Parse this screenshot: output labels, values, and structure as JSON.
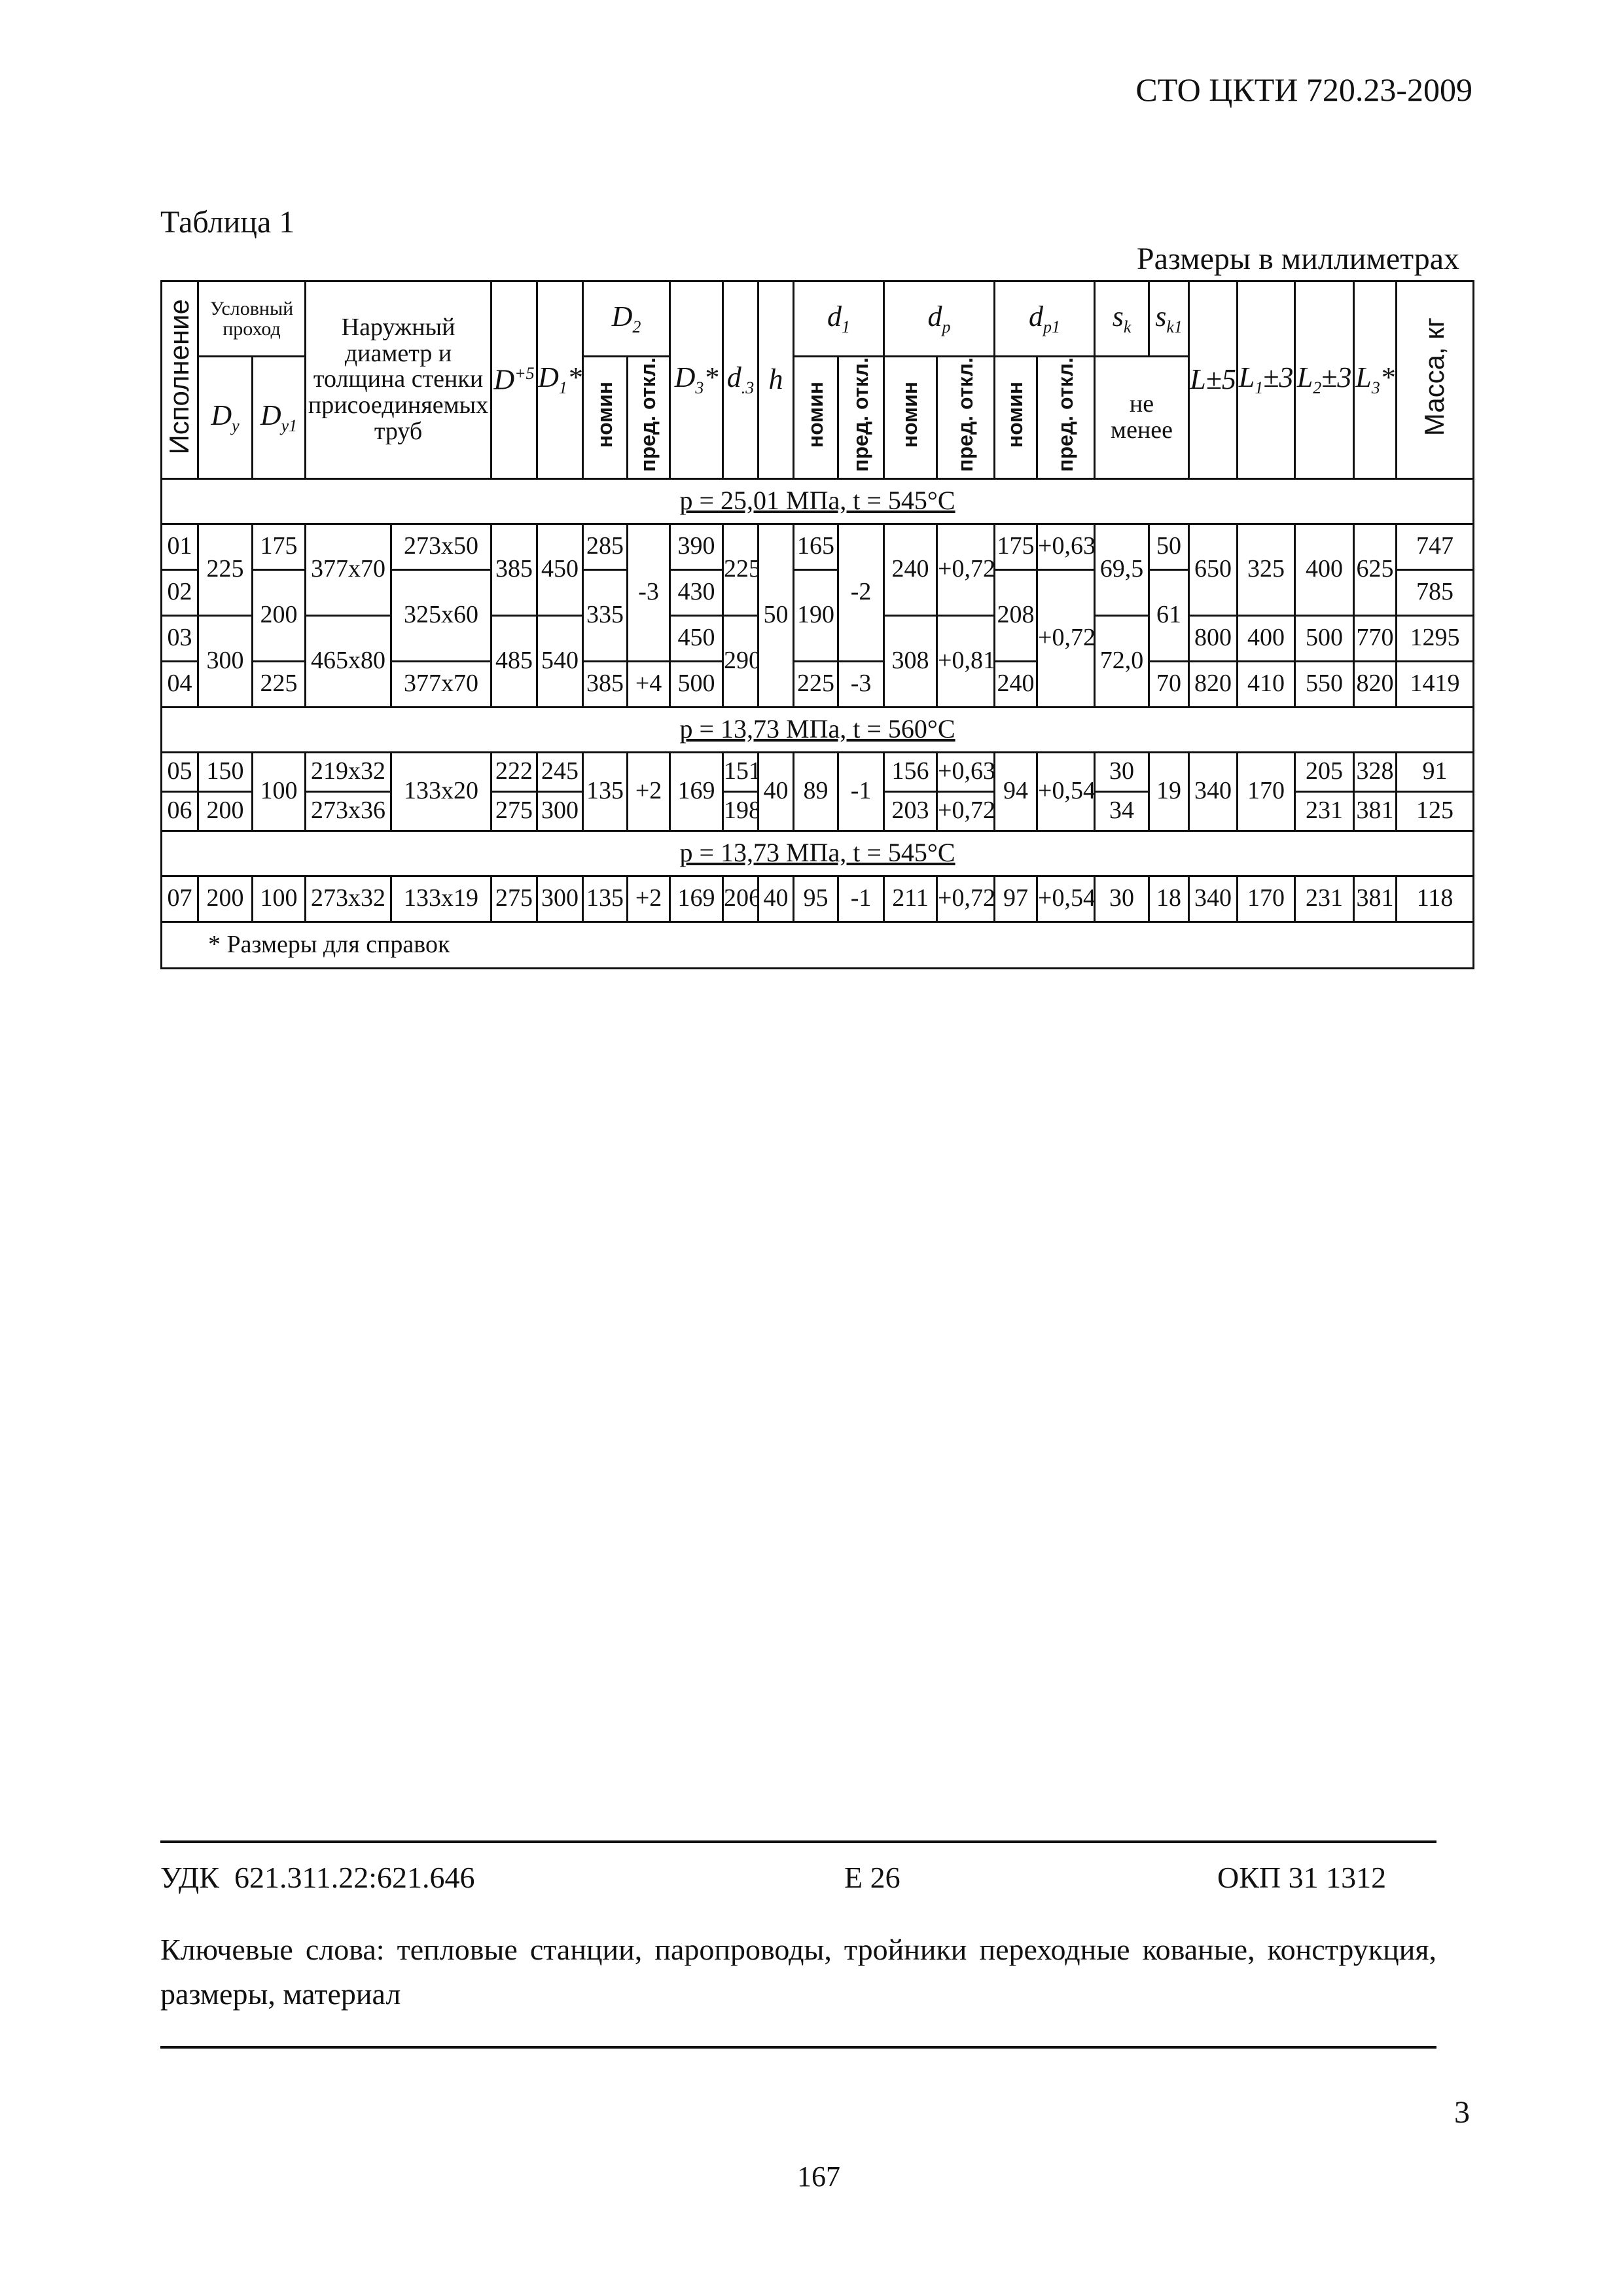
{
  "header": {
    "doc_code": "СТО ЦКТИ 720.23-2009",
    "table_title": "Таблица 1",
    "units": "Размеры в миллиметрах"
  },
  "table": {
    "columns": {
      "variant": "Исполнение",
      "nominal_bore": "Условный проход",
      "dy": {
        "main": "D",
        "sub": "у"
      },
      "dy1": {
        "main": "D",
        "sub": "у1"
      },
      "outer": "Наружный диаметр и толщина стенки присоединяемых труб",
      "d": {
        "main": "D",
        "sup": "+5"
      },
      "d1": {
        "main": "D",
        "sub": "1",
        "tail": "*"
      },
      "d2": {
        "main": "D",
        "sub": "2"
      },
      "d3": {
        "main": "D",
        "sub": "3",
        "tail": "*"
      },
      "d_3": {
        "main": "d",
        "sub": ".3"
      },
      "h": "h",
      "sd1": {
        "main": "d",
        "sub": "1"
      },
      "dp": {
        "main": "d",
        "sub": "p"
      },
      "dp1": {
        "main": "d",
        "sub": "p1"
      },
      "sk": {
        "main": "s",
        "sub": "k"
      },
      "sk1": {
        "main": "s",
        "sub": "k1"
      },
      "l": {
        "main": "L",
        "tail": "±5"
      },
      "l1": {
        "main": "L",
        "sub": "1",
        "tail": "±3"
      },
      "l2": {
        "main": "L",
        "sub": "2",
        "tail": "±3"
      },
      "l3": {
        "main": "L",
        "sub": "3",
        "tail": "*"
      },
      "mass": "Масса, кг",
      "nom": "номин",
      "dev": "пред. откл.",
      "min": "не менее"
    },
    "blocks": [
      {
        "condition": "p = 25,01 МПа, t = 545°C",
        "row_class": "hr",
        "rows": [
          [
            [
              "01",
              2
            ],
            [
              "225",
              4
            ],
            [
              "175",
              2
            ],
            [
              "377x70",
              4
            ],
            [
              "273x50",
              2
            ],
            [
              "385",
              4
            ],
            [
              "450",
              4
            ],
            [
              "285",
              2
            ],
            [
              "-3",
              6
            ],
            [
              "390",
              2
            ],
            [
              "225",
              4
            ],
            [
              "50",
              8
            ],
            [
              "165",
              2
            ],
            [
              "-2",
              6
            ],
            [
              "240",
              4
            ],
            [
              "+0,72",
              4
            ],
            [
              "175",
              2
            ],
            [
              "+0,63",
              2
            ],
            [
              "69,5",
              4
            ],
            [
              "50",
              2
            ],
            [
              "650",
              4
            ],
            [
              "325",
              4
            ],
            [
              "400",
              4
            ],
            [
              "625",
              4
            ],
            [
              "747",
              2
            ]
          ],
          [],
          [
            [
              "02",
              2
            ],
            [
              "200",
              4
            ],
            [
              "325x60",
              4
            ],
            [
              "335",
              4
            ],
            [
              "430",
              2
            ],
            [
              "190",
              4
            ],
            [
              "208",
              4
            ],
            [
              "+0,72",
              6
            ],
            [
              "61",
              4
            ],
            [
              "785",
              2
            ]
          ],
          [],
          [
            [
              "03",
              2
            ],
            [
              "300",
              4
            ],
            [
              "465x80",
              4
            ],
            [
              "485",
              4
            ],
            [
              "540",
              4
            ],
            [
              "450",
              2
            ],
            [
              "290",
              4
            ],
            [
              "308",
              4
            ],
            [
              "+0,81",
              4
            ],
            [
              "72,0",
              4
            ],
            [
              "800",
              2
            ],
            [
              "400",
              2
            ],
            [
              "500",
              2
            ],
            [
              "770",
              2
            ],
            [
              "1295",
              2
            ]
          ],
          [],
          [
            [
              "04",
              2
            ],
            [
              "225",
              2
            ],
            [
              "377x70",
              2
            ],
            [
              "385",
              2
            ],
            [
              "+4",
              2
            ],
            [
              "500",
              2
            ],
            [
              "225",
              2
            ],
            [
              "-3",
              2
            ],
            [
              "240",
              2
            ],
            [
              "70",
              2
            ],
            [
              "820",
              2
            ],
            [
              "410",
              2
            ],
            [
              "550",
              2
            ],
            [
              "820",
              2
            ],
            [
              "1419",
              2
            ]
          ],
          []
        ]
      },
      {
        "condition": "p = 13,73 МПа, t = 560°C",
        "row_class": "fr",
        "rows": [
          [
            [
              "05",
              1
            ],
            [
              "150",
              1
            ],
            [
              "100",
              2
            ],
            [
              "219x32",
              1
            ],
            [
              "133x20",
              2
            ],
            [
              "222",
              1
            ],
            [
              "245",
              1
            ],
            [
              "135",
              2
            ],
            [
              "+2",
              2
            ],
            [
              "169",
              2
            ],
            [
              "151",
              1
            ],
            [
              "40",
              2
            ],
            [
              "89",
              2
            ],
            [
              "-1",
              2
            ],
            [
              "156",
              1
            ],
            [
              "+0,63",
              1
            ],
            [
              "94",
              2
            ],
            [
              "+0,54",
              2
            ],
            [
              "30",
              1
            ],
            [
              "19",
              2
            ],
            [
              "340",
              2
            ],
            [
              "170",
              2
            ],
            [
              "205",
              1
            ],
            [
              "328",
              1
            ],
            [
              "91",
              1
            ]
          ],
          [
            [
              "06",
              1
            ],
            [
              "200",
              1
            ],
            [
              "273x36",
              1
            ],
            [
              "275",
              1
            ],
            [
              "300",
              1
            ],
            [
              "198",
              1
            ],
            [
              "203",
              1
            ],
            [
              "+0,72",
              1
            ],
            [
              "34",
              1
            ],
            [
              "231",
              1
            ],
            [
              "381",
              1
            ],
            [
              "125",
              1
            ]
          ]
        ]
      },
      {
        "condition": "p = 13,73 МПа, t = 545°C",
        "row_class": "sr",
        "rows": [
          [
            [
              "07",
              1
            ],
            [
              "200",
              1
            ],
            [
              "100",
              1
            ],
            [
              "273x32",
              1
            ],
            [
              "133x19",
              1
            ],
            [
              "275",
              1
            ],
            [
              "300",
              1
            ],
            [
              "135",
              1
            ],
            [
              "+2",
              1
            ],
            [
              "169",
              1
            ],
            [
              "206",
              1
            ],
            [
              "40",
              1
            ],
            [
              "95",
              1
            ],
            [
              "-1",
              1
            ],
            [
              "211",
              1
            ],
            [
              "+0,72",
              1
            ],
            [
              "97",
              1
            ],
            [
              "+0,54",
              1
            ],
            [
              "30",
              1
            ],
            [
              "18",
              1
            ],
            [
              "340",
              1
            ],
            [
              "170",
              1
            ],
            [
              "231",
              1
            ],
            [
              "381",
              1
            ],
            [
              "118",
              1
            ]
          ]
        ]
      }
    ],
    "footnote": "* Размеры для справок"
  },
  "footer": {
    "udk": "УДК  621.311.22:621.646",
    "e": "Е 26",
    "okp": "ОКП 31 1312",
    "keywords": "Ключевые слова: тепловые станции, паропроводы, тройники переходные кованые, конструкция, размеры, материал",
    "page_number": "3",
    "sheet_number": "167"
  }
}
